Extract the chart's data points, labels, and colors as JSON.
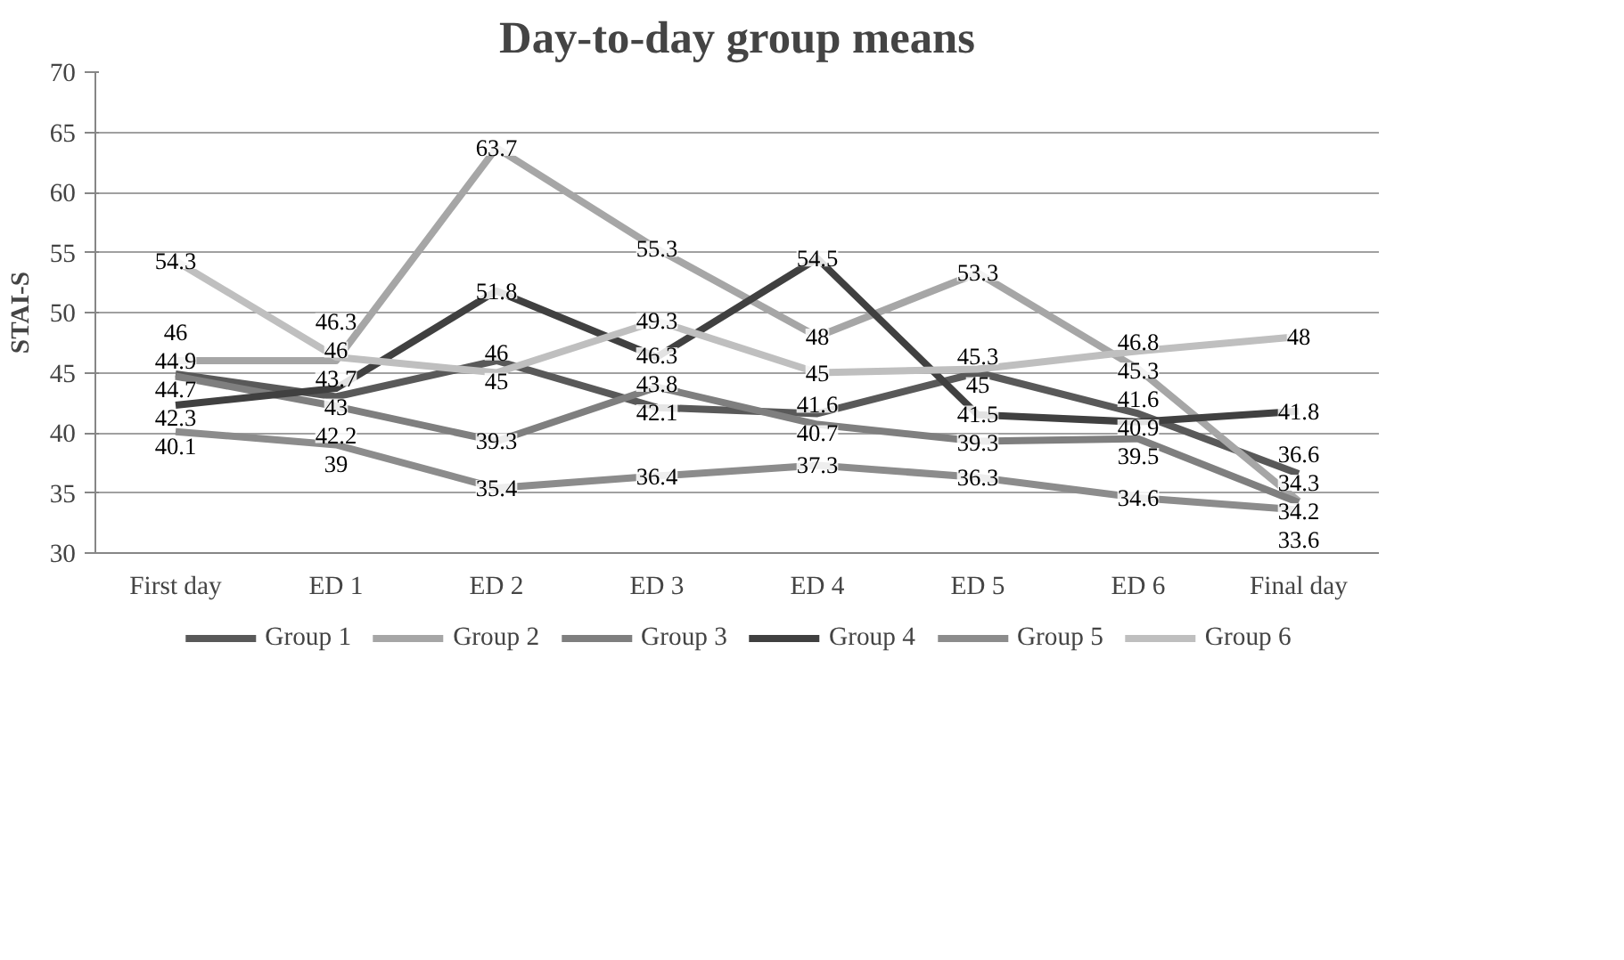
{
  "chart_data": {
    "type": "line",
    "title": "Day-to-day group means",
    "ylabel": "STAI-S",
    "categories": [
      "First day",
      "ED 1",
      "ED 2",
      "ED 3",
      "ED 4",
      "ED 5",
      "ED 6",
      "Final day"
    ],
    "series": [
      {
        "name": "Group 1",
        "color": "#595959",
        "values": [
          44.9,
          43,
          46,
          42.1,
          41.6,
          45,
          41.6,
          36.6
        ]
      },
      {
        "name": "Group 2",
        "color": "#a6a6a6",
        "values": [
          46,
          46,
          63.7,
          55.3,
          48,
          53.3,
          45.3,
          34.3
        ]
      },
      {
        "name": "Group 3",
        "color": "#7f7f7f",
        "values": [
          44.7,
          42.2,
          39.3,
          43.8,
          40.7,
          39.3,
          39.5,
          34.2
        ]
      },
      {
        "name": "Group 4",
        "color": "#404040",
        "values": [
          42.3,
          43.7,
          51.8,
          46.3,
          54.5,
          41.5,
          40.9,
          41.8
        ]
      },
      {
        "name": "Group 5",
        "color": "#8c8c8c",
        "values": [
          40.1,
          39,
          35.4,
          36.4,
          37.3,
          36.3,
          34.6,
          33.6
        ]
      },
      {
        "name": "Group 6",
        "color": "#bfbfbf",
        "values": [
          54.3,
          46.3,
          45,
          49.3,
          45,
          45.3,
          46.8,
          48
        ]
      }
    ],
    "ylim": [
      30,
      70
    ],
    "yticks": [
      30,
      35,
      40,
      45,
      50,
      55,
      60,
      65,
      70
    ],
    "grid": "y",
    "legend": "bottom",
    "data_labels": true,
    "line_style": "solid"
  }
}
